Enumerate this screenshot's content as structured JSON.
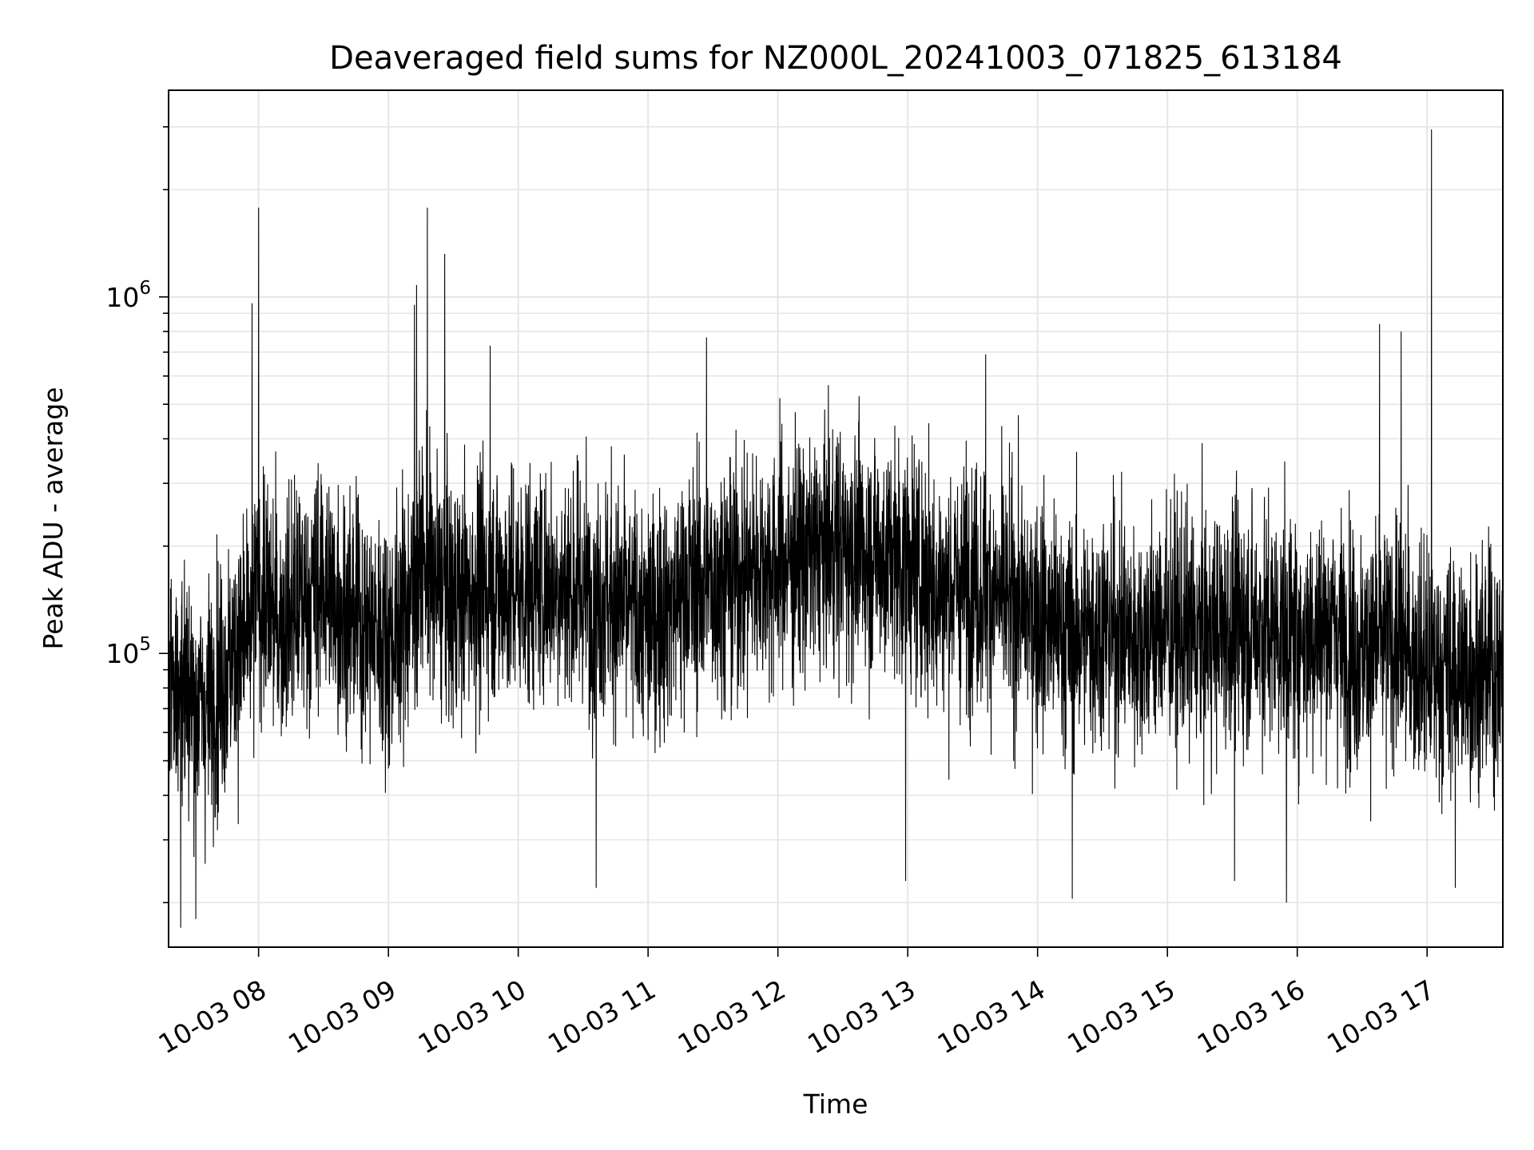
{
  "chart_data": {
    "type": "line",
    "title": "Deaveraged field sums for NZ000L_20241003_071825_613184",
    "xlabel": "Time",
    "ylabel": "Peak ADU - average",
    "yscale": "log",
    "xlim": [
      "2024-10-03 07:18:25",
      "2024-10-03 17:35:00"
    ],
    "ylim": [
      15000,
      3800000
    ],
    "grid": true,
    "line_color": "#000000",
    "grid_color": "#e6e6e6",
    "x_ticks": [
      "10-03 08",
      "10-03 09",
      "10-03 10",
      "10-03 11",
      "10-03 12",
      "10-03 13",
      "10-03 14",
      "10-03 15",
      "10-03 16",
      "10-03 17"
    ],
    "y_ticks": [
      {
        "value": 100000,
        "base": "10",
        "exp": "5"
      },
      {
        "value": 1000000,
        "base": "10",
        "exp": "6"
      }
    ],
    "series": [
      {
        "x": [
          "2024-10-03 07:25",
          "2024-10-03 07:35",
          "2024-10-03 07:45",
          "2024-10-03 07:55",
          "2024-10-03 08:00",
          "2024-10-03 08:10",
          "2024-10-03 08:20",
          "2024-10-03 08:30",
          "2024-10-03 08:40",
          "2024-10-03 08:50",
          "2024-10-03 09:00",
          "2024-10-03 09:10",
          "2024-10-03 09:15",
          "2024-10-03 09:20",
          "2024-10-03 09:30",
          "2024-10-03 09:40",
          "2024-10-03 09:50",
          "2024-10-03 10:00",
          "2024-10-03 10:15",
          "2024-10-03 10:30",
          "2024-10-03 10:45",
          "2024-10-03 11:00",
          "2024-10-03 11:15",
          "2024-10-03 11:30",
          "2024-10-03 11:45",
          "2024-10-03 12:00",
          "2024-10-03 12:15",
          "2024-10-03 12:30",
          "2024-10-03 12:45",
          "2024-10-03 13:00",
          "2024-10-03 13:15",
          "2024-10-03 13:30",
          "2024-10-03 13:45",
          "2024-10-03 14:00",
          "2024-10-03 14:15",
          "2024-10-03 14:30",
          "2024-10-03 14:45",
          "2024-10-03 15:00",
          "2024-10-03 15:15",
          "2024-10-03 15:30",
          "2024-10-03 15:45",
          "2024-10-03 16:00",
          "2024-10-03 16:15",
          "2024-10-03 16:30",
          "2024-10-03 16:45",
          "2024-10-03 17:00",
          "2024-10-03 17:15",
          "2024-10-03 17:30"
        ],
        "y": [
          80000,
          70000,
          90000,
          110000,
          150000,
          120000,
          140000,
          160000,
          130000,
          120000,
          110000,
          140000,
          180000,
          160000,
          140000,
          150000,
          160000,
          150000,
          160000,
          150000,
          140000,
          120000,
          150000,
          160000,
          170000,
          180000,
          190000,
          200000,
          190000,
          180000,
          150000,
          160000,
          140000,
          130000,
          110000,
          120000,
          110000,
          120000,
          110000,
          120000,
          120000,
          110000,
          120000,
          100000,
          110000,
          90000,
          90000,
          90000
        ]
      }
    ],
    "spikes": [
      {
        "x": "2024-10-03 07:57",
        "y": 960000
      },
      {
        "x": "2024-10-03 08:00",
        "y": 1780000
      },
      {
        "x": "2024-10-03 09:12",
        "y": 950000
      },
      {
        "x": "2024-10-03 09:13",
        "y": 1080000
      },
      {
        "x": "2024-10-03 09:18",
        "y": 1780000
      },
      {
        "x": "2024-10-03 09:26",
        "y": 1320000
      },
      {
        "x": "2024-10-03 09:47",
        "y": 730000
      },
      {
        "x": "2024-10-03 11:27",
        "y": 770000
      },
      {
        "x": "2024-10-03 13:36",
        "y": 690000
      },
      {
        "x": "2024-10-03 16:38",
        "y": 840000
      },
      {
        "x": "2024-10-03 16:48",
        "y": 800000
      },
      {
        "x": "2024-10-03 17:02",
        "y": 2950000
      }
    ],
    "dips": [
      {
        "x": "2024-10-03 07:24",
        "y": 17000
      },
      {
        "x": "2024-10-03 07:31",
        "y": 18000
      },
      {
        "x": "2024-10-03 10:36",
        "y": 22000
      },
      {
        "x": "2024-10-03 12:59",
        "y": 23000
      },
      {
        "x": "2024-10-03 14:16",
        "y": 20500
      },
      {
        "x": "2024-10-03 15:31",
        "y": 23000
      },
      {
        "x": "2024-10-03 15:55",
        "y": 20000
      },
      {
        "x": "2024-10-03 17:13",
        "y": 22000
      }
    ]
  }
}
